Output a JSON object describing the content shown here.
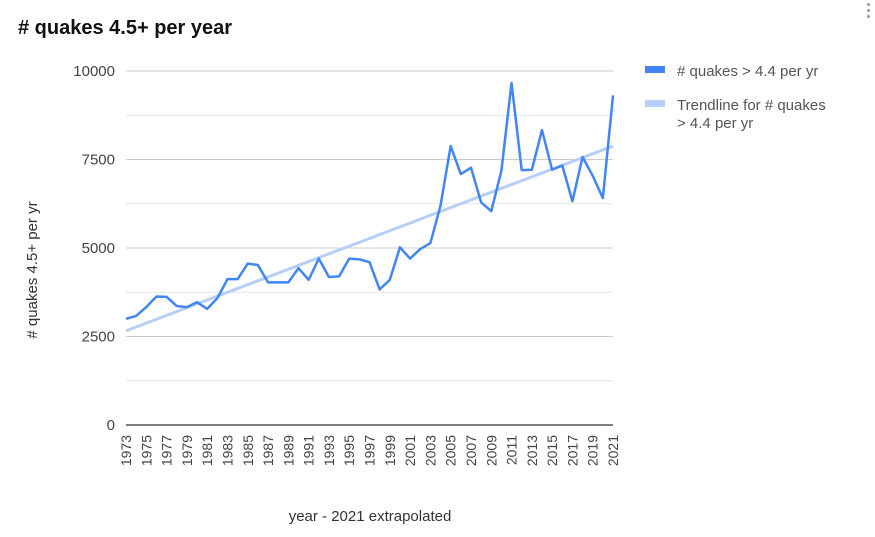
{
  "chart_data": {
    "type": "line",
    "title": "# quakes 4.5+ per year",
    "xlabel": "year - 2021 extrapolated",
    "ylabel": "# quakes  4.5+ per yr",
    "ylim": [
      0,
      10000
    ],
    "yticks": [
      0,
      2500,
      5000,
      7500,
      10000
    ],
    "ytick_labels": [
      "0",
      "2500",
      "5000",
      "7500",
      "10000"
    ],
    "xlim": [
      1973,
      2021
    ],
    "xtick_labels": [
      "1973",
      "1975",
      "1977",
      "1979",
      "1981",
      "1983",
      "1985",
      "1987",
      "1989",
      "1991",
      "1993",
      "1995",
      "1997",
      "1999",
      "2001",
      "2003",
      "2005",
      "2007",
      "2009",
      "2011",
      "2013",
      "2015",
      "2017",
      "2019",
      "2021"
    ],
    "grid": true,
    "legend_position": "right",
    "series": [
      {
        "name": "# quakes > 4.4 per yr",
        "color": "#4285f4",
        "x": [
          1973,
          1974,
          1975,
          1976,
          1977,
          1978,
          1979,
          1980,
          1981,
          1982,
          1983,
          1984,
          1985,
          1986,
          1987,
          1988,
          1989,
          1990,
          1991,
          1992,
          1993,
          1994,
          1995,
          1996,
          1997,
          1998,
          1999,
          2000,
          2001,
          2002,
          2003,
          2004,
          2005,
          2006,
          2007,
          2008,
          2009,
          2010,
          2011,
          2012,
          2013,
          2014,
          2015,
          2016,
          2017,
          2018,
          2019,
          2020,
          2021
        ],
        "values": [
          3000,
          3080,
          3330,
          3630,
          3620,
          3360,
          3330,
          3470,
          3280,
          3580,
          4120,
          4120,
          4560,
          4520,
          4030,
          4030,
          4030,
          4430,
          4100,
          4700,
          4180,
          4200,
          4700,
          4680,
          4600,
          3830,
          4100,
          5020,
          4700,
          4970,
          5140,
          6200,
          7880,
          7090,
          7270,
          6290,
          6040,
          7180,
          9660,
          7200,
          7210,
          8330,
          7210,
          7330,
          6320,
          7570,
          7040,
          6410,
          9310
        ]
      },
      {
        "name": "Trendline for # quakes > 4.4 per yr",
        "color": "#b6cff8",
        "x": [
          1973,
          2021
        ],
        "values": [
          2660,
          7880
        ]
      }
    ]
  },
  "legend": {
    "item1": "# quakes > 4.4 per yr",
    "item2_line1": "Trendline for # quakes",
    "item2_line2": "> 4.4 per yr"
  }
}
